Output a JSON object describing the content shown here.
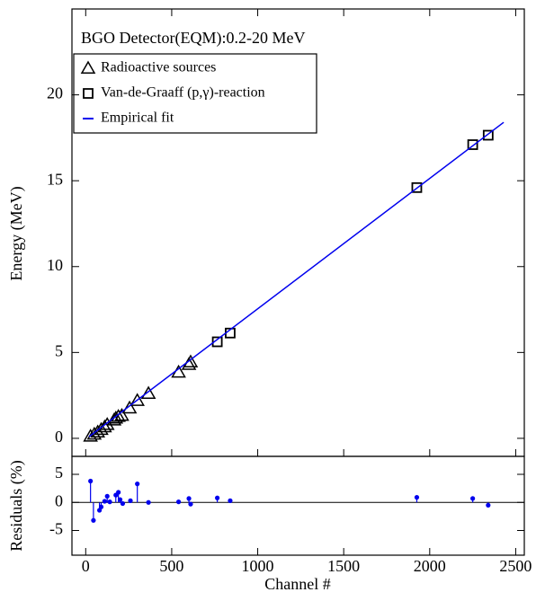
{
  "chart_data": [
    {
      "type": "scatter",
      "title": "BGO Detector(EQM):0.2-20 MeV",
      "y_label": "Energy (MeV)",
      "xlim": [
        -80,
        2550
      ],
      "ylim": [
        -1.05,
        25
      ],
      "yticks": [
        0,
        5,
        10,
        15,
        20
      ],
      "series": [
        {
          "name": "Radioactive sources",
          "marker": "triangle",
          "color": "#000000",
          "x": [
            28,
            50,
            70,
            90,
            110,
            125,
            165,
            175,
            190,
            210,
            255,
            300,
            365,
            540,
            600,
            610
          ],
          "values": [
            0.12,
            0.24,
            0.36,
            0.51,
            0.66,
            0.8,
            1.06,
            1.17,
            1.27,
            1.33,
            1.76,
            2.2,
            2.61,
            3.85,
            4.3,
            4.44
          ]
        },
        {
          "name": "Van-de-Graaff (p,γ)-reaction",
          "marker": "square",
          "color": "#000000",
          "x": [
            765,
            840,
            1925,
            2250,
            2340
          ],
          "values": [
            5.62,
            6.13,
            14.6,
            17.1,
            17.65
          ]
        },
        {
          "name": "Empirical fit",
          "marker": "line",
          "color": "#0000ee",
          "x": [
            20,
            2430
          ],
          "values": [
            0.1,
            18.4
          ]
        }
      ]
    },
    {
      "type": "stem",
      "y_label": "Residuals (%)",
      "x_label": "Channel #",
      "xlim": [
        -80,
        2550
      ],
      "ylim": [
        -9.4,
        8.2
      ],
      "yticks": [
        -5,
        0,
        5
      ],
      "xticks": [
        0,
        500,
        1000,
        1500,
        2000,
        2500
      ],
      "color": "#0000ee",
      "x": [
        28,
        45,
        80,
        90,
        110,
        125,
        140,
        175,
        190,
        200,
        215,
        260,
        300,
        365,
        540,
        600,
        610,
        765,
        840,
        1925,
        2250,
        2340
      ],
      "values": [
        3.8,
        -3.2,
        -1.4,
        -0.8,
        0.2,
        1.1,
        0.1,
        1.3,
        1.8,
        0.5,
        -0.2,
        0.3,
        3.3,
        0.0,
        0.1,
        0.7,
        -0.3,
        0.8,
        0.3,
        0.9,
        0.7,
        -0.5
      ]
    }
  ]
}
